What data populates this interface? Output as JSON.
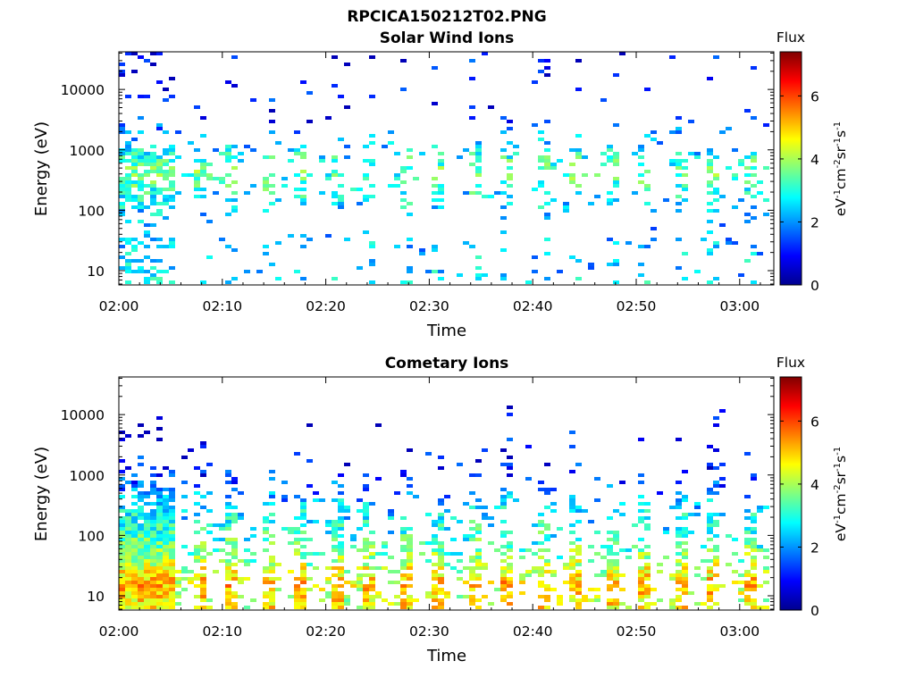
{
  "figure_title": "RPCICA150212T02.PNG",
  "chart_data": [
    {
      "type": "heatmap",
      "title": "Solar Wind Ions",
      "xlabel": "Time",
      "ylabel": "Energy (eV)",
      "x_tick_labels": [
        "02:00",
        "02:10",
        "02:20",
        "02:30",
        "02:40",
        "02:50",
        "03:00"
      ],
      "x_tick_minutes": [
        0,
        10,
        20,
        30,
        40,
        50,
        60
      ],
      "xlim_minutes": [
        0,
        63.3
      ],
      "y_scale": "log",
      "y_tick_labels": [
        "10",
        "100",
        "1000",
        "10000"
      ],
      "y_tick_values": [
        10,
        100,
        1000,
        10000
      ],
      "ylim": [
        5.8,
        42000
      ],
      "colorbar": {
        "title": "Flux",
        "label": "eV",
        "label_parts": [
          "eV",
          "-1",
          "cm",
          "-2",
          "sr",
          "-1",
          "s",
          "-1"
        ],
        "range": [
          0,
          7.4
        ],
        "ticks": [
          0,
          2,
          4,
          6
        ],
        "colormap": "jet"
      },
      "seed": 11,
      "density_profile": [
        [
          4000,
          0.06
        ],
        [
          1500,
          0.1
        ],
        [
          900,
          0.4
        ],
        [
          350,
          0.35
        ],
        [
          150,
          0.35
        ],
        [
          60,
          0.05
        ],
        [
          25,
          0.12
        ],
        [
          8,
          0.2
        ]
      ],
      "intensity_profile": [
        [
          4000,
          1.0
        ],
        [
          1000,
          2.8
        ],
        [
          400,
          3.6
        ],
        [
          150,
          2.8
        ],
        [
          60,
          2.2
        ],
        [
          20,
          2.4
        ],
        [
          8,
          2.6
        ]
      ]
    },
    {
      "type": "heatmap",
      "title": "Cometary Ions",
      "xlabel": "Time",
      "ylabel": "Energy (eV)",
      "x_tick_labels": [
        "02:00",
        "02:10",
        "02:20",
        "02:30",
        "02:40",
        "02:50",
        "03:00"
      ],
      "x_tick_minutes": [
        0,
        10,
        20,
        30,
        40,
        50,
        60
      ],
      "xlim_minutes": [
        0,
        63.3
      ],
      "y_scale": "log",
      "y_tick_labels": [
        "10",
        "100",
        "1000",
        "10000"
      ],
      "y_tick_values": [
        10,
        100,
        1000,
        10000
      ],
      "ylim": [
        5.8,
        42000
      ],
      "colorbar": {
        "title": "Flux",
        "label": "eV",
        "label_parts": [
          "eV",
          "-1",
          "cm",
          "-2",
          "sr",
          "-1",
          "s",
          "-1"
        ],
        "range": [
          0,
          7.4
        ],
        "ticks": [
          0,
          2,
          4,
          6
        ],
        "colormap": "jet"
      },
      "seed": 29,
      "density_profile": [
        [
          20000,
          0.01
        ],
        [
          3000,
          0.03
        ],
        [
          1200,
          0.12
        ],
        [
          500,
          0.28
        ],
        [
          200,
          0.45
        ],
        [
          80,
          0.6
        ],
        [
          30,
          0.7
        ],
        [
          8,
          0.75
        ]
      ],
      "intensity_profile": [
        [
          10000,
          0.8
        ],
        [
          1000,
          1.2
        ],
        [
          300,
          2.6
        ],
        [
          100,
          3.2
        ],
        [
          40,
          4.0
        ],
        [
          15,
          5.2
        ],
        [
          8,
          4.8
        ]
      ]
    }
  ]
}
